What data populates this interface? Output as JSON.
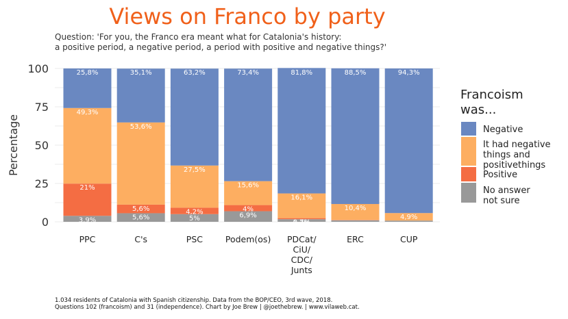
{
  "chart_data": {
    "type": "bar",
    "stacked": true,
    "title": "Views on Franco by party",
    "subtitle_lines": [
      "Question: 'For you, the Franco era meant what for Catalonia's history:",
      "a positive period, a negative period, a period with positive and negative things?'"
    ],
    "ylabel": "Percentage",
    "xlabel": "",
    "ylim": [
      0,
      100
    ],
    "yticks": [
      0,
      25,
      50,
      75,
      100
    ],
    "grid": true,
    "legend_position": "right",
    "legend_title_lines": [
      "Francoism",
      "was..."
    ],
    "categories": [
      [
        "PPC"
      ],
      [
        "C's"
      ],
      [
        "PSC"
      ],
      [
        "Podem(os)"
      ],
      [
        "PDCat/",
        "CiU/",
        "CDC/",
        "Junts"
      ],
      [
        "ERC"
      ],
      [
        "CUP"
      ]
    ],
    "series": [
      {
        "name": "No answer not sure",
        "legend_lines": [
          "No answer",
          "not sure"
        ],
        "color": "#999999",
        "values": [
          3.9,
          5.6,
          5.0,
          6.9,
          1.7,
          1.0,
          0.8
        ],
        "labels": [
          "3,9%",
          "5,6%",
          "5%",
          "6,9%",
          "1,7%",
          "",
          ""
        ]
      },
      {
        "name": "Positive",
        "legend_lines": [
          "Positive"
        ],
        "color": "#f46d43",
        "values": [
          21.0,
          5.6,
          4.2,
          4.0,
          0.7,
          0.2,
          0.0
        ],
        "labels": [
          "21%",
          "5,6%",
          "4,2%",
          "4%",
          "0,7%",
          "",
          ""
        ]
      },
      {
        "name": "It had negative things and positivethings",
        "legend_lines": [
          "It had negative",
          "things and",
          "positivethings"
        ],
        "color": "#fdae61",
        "values": [
          49.3,
          53.6,
          27.5,
          15.6,
          16.1,
          10.4,
          4.9
        ],
        "labels": [
          "49,3%",
          "53,6%",
          "27,5%",
          "15,6%",
          "16,1%",
          "10,4%",
          "4,9%"
        ]
      },
      {
        "name": "Negative",
        "legend_lines": [
          "Negative"
        ],
        "color": "#6a88c1",
        "values": [
          25.8,
          35.1,
          63.2,
          73.4,
          81.8,
          88.5,
          94.3
        ],
        "labels": [
          "25,8%",
          "35,1%",
          "63,2%",
          "73,4%",
          "81,8%",
          "88,5%",
          "94,3%"
        ]
      }
    ],
    "legend_order": [
      3,
      2,
      1,
      0
    ],
    "caption_lines": [
      "1.034 residents of Catalonia with Spanish citizenship. Data from the BOP/CEO, 3rd wave, 2018.",
      "Questions 102 (francoism) and 31 (independence). Chart by Joe Brew | @joethebrew. |  www.vilaweb.cat."
    ]
  }
}
